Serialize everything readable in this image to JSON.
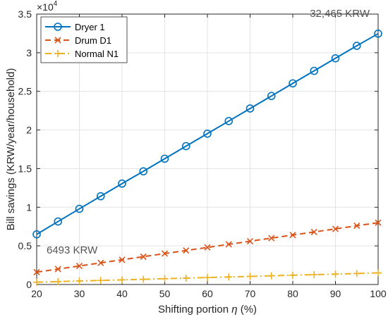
{
  "chart_data": {
    "type": "line",
    "xlabel_main": "Shifting portion ",
    "xlabel_symbol": "η",
    "xlabel_unit": " (%)",
    "ylabel": "Bill savings (KRW/year/household)",
    "y_multiplier_base": "×10",
    "y_multiplier_exp": "4",
    "xlim": [
      20,
      100
    ],
    "ylim": [
      0,
      35000
    ],
    "x_ticks": [
      20,
      30,
      40,
      50,
      60,
      70,
      80,
      90,
      100
    ],
    "y_ticks": [
      0,
      5000,
      10000,
      15000,
      20000,
      25000,
      30000,
      35000
    ],
    "y_tick_labels": [
      "0",
      "0.5",
      "1",
      "1.5",
      "2",
      "2.5",
      "3",
      "3.5"
    ],
    "grid": true,
    "legend_position": "top-left",
    "x": [
      20,
      25,
      30,
      35,
      40,
      45,
      50,
      55,
      60,
      65,
      70,
      75,
      80,
      85,
      90,
      95,
      100
    ],
    "series": [
      {
        "name": "Dryer 1",
        "color": "#0072BD",
        "line": "solid",
        "marker": "circle",
        "values": [
          6493,
          8153,
          9792,
          11423,
          13060,
          14650,
          16282,
          17911,
          19524,
          21152,
          22779,
          24398,
          26033,
          27651,
          29279,
          30894,
          32465
        ]
      },
      {
        "name": "Drum D1",
        "color": "#D95319",
        "line": "dashed",
        "marker": "x",
        "values": [
          1600,
          2000,
          2400,
          2800,
          3200,
          3600,
          4000,
          4400,
          4800,
          5200,
          5600,
          6000,
          6400,
          6800,
          7200,
          7600,
          8000
        ]
      },
      {
        "name": "Normal N1",
        "color": "#EDB120",
        "line": "dashdot",
        "marker": "plus",
        "values": [
          300,
          375,
          450,
          525,
          600,
          675,
          750,
          825,
          900,
          975,
          1050,
          1125,
          1200,
          1275,
          1350,
          1425,
          1500
        ]
      }
    ],
    "annotations": [
      {
        "text": "32,465 KRW",
        "x": 100,
        "y": 32465,
        "placement": "upper-left of point"
      },
      {
        "text": "6493 KRW",
        "x": 20,
        "y": 6493,
        "placement": "lower-right of point"
      }
    ]
  }
}
